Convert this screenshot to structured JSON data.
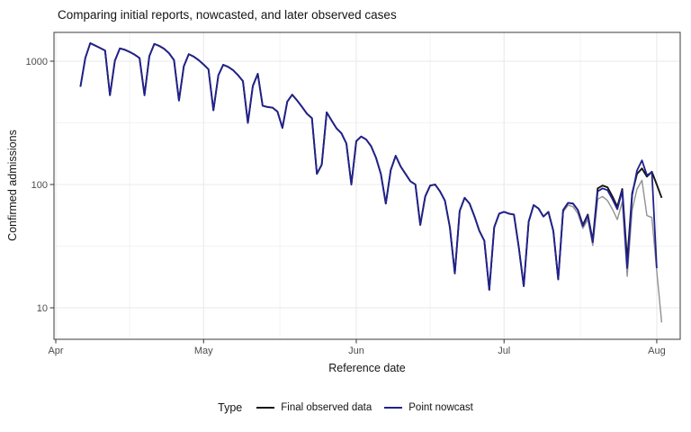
{
  "title": "Comparing initial reports, nowcasted, and later observed cases",
  "x_axis": {
    "label": "Reference date"
  },
  "y_axis": {
    "label": "Confirmed admissions"
  },
  "legend": {
    "title": "Type",
    "items": [
      {
        "label": "Final observed data",
        "color": "#141414"
      },
      {
        "label": "Point nowcast",
        "color": "#212191"
      }
    ]
  },
  "colors": {
    "background": "#ffffff",
    "panel_border": "#4d4d4d",
    "grid_major": "#e8e8e8",
    "grid_minor": "#f3f3f3",
    "tick_mark": "#333333",
    "tick_label": "#4d4d4d",
    "final_observed": "#141414",
    "point_nowcast": "#212191",
    "initial_reports": "#919191"
  },
  "chart_data": {
    "type": "line",
    "title": "Comparing initial reports, nowcasted, and later observed cases",
    "xlabel": "Reference date",
    "ylabel": "Confirmed admissions",
    "y_scale": "log10",
    "ylim": [
      5.6,
      1700
    ],
    "grid": true,
    "legend_position": "bottom",
    "x_ticks": [
      {
        "label": "Apr",
        "day": 0
      },
      {
        "label": "May",
        "day": 30
      },
      {
        "label": "Jun",
        "day": 61
      },
      {
        "label": "Jul",
        "day": 91
      },
      {
        "label": "Aug",
        "day": 122
      }
    ],
    "y_ticks": [
      {
        "label": "1000",
        "value": 1000
      },
      {
        "label": "100",
        "value": 100
      },
      {
        "label": "10",
        "value": 10
      }
    ],
    "minor_x_days": [
      15,
      45.5,
      76,
      106.5
    ],
    "minor_y_values": [
      316.23,
      31.62
    ],
    "dates": [
      "04-06",
      "04-07",
      "04-08",
      "04-09",
      "04-10",
      "04-11",
      "04-12",
      "04-13",
      "04-14",
      "04-15",
      "04-16",
      "04-17",
      "04-18",
      "04-19",
      "04-20",
      "04-21",
      "04-22",
      "04-23",
      "04-24",
      "04-25",
      "04-26",
      "04-27",
      "04-28",
      "04-29",
      "04-30",
      "05-01",
      "05-02",
      "05-03",
      "05-04",
      "05-05",
      "05-06",
      "05-07",
      "05-08",
      "05-09",
      "05-10",
      "05-11",
      "05-12",
      "05-13",
      "05-14",
      "05-15",
      "05-16",
      "05-17",
      "05-18",
      "05-19",
      "05-20",
      "05-21",
      "05-22",
      "05-23",
      "05-24",
      "05-25",
      "05-26",
      "05-27",
      "05-28",
      "05-29",
      "05-30",
      "05-31",
      "06-01",
      "06-02",
      "06-03",
      "06-04",
      "06-05",
      "06-06",
      "06-07",
      "06-08",
      "06-09",
      "06-10",
      "06-11",
      "06-12",
      "06-13",
      "06-14",
      "06-15",
      "06-16",
      "06-17",
      "06-18",
      "06-19",
      "06-20",
      "06-21",
      "06-22",
      "06-23",
      "06-24",
      "06-25",
      "06-26",
      "06-27",
      "06-28",
      "06-29",
      "06-30",
      "07-01",
      "07-02",
      "07-03",
      "07-04",
      "07-05",
      "07-06",
      "07-07",
      "07-08",
      "07-09",
      "07-10",
      "07-11",
      "07-12",
      "07-13",
      "07-14",
      "07-15",
      "07-16",
      "07-17",
      "07-18",
      "07-19",
      "07-20",
      "07-21",
      "07-22",
      "07-23",
      "07-24",
      "07-25",
      "07-26",
      "07-27",
      "07-28",
      "07-29",
      "07-30",
      "07-31",
      "08-01",
      "08-02"
    ],
    "series": [
      {
        "name": "Initial reports",
        "in_legend": false,
        "color": "#919191",
        "width": 1.4,
        "values": [
          620,
          1060,
          1400,
          1340,
          1280,
          1220,
          530,
          1010,
          1270,
          1240,
          1190,
          1130,
          1060,
          530,
          1100,
          1380,
          1330,
          1260,
          1160,
          1020,
          480,
          910,
          1140,
          1090,
          1020,
          940,
          860,
          400,
          770,
          935,
          900,
          845,
          770,
          690,
          316,
          630,
          790,
          435,
          425,
          420,
          390,
          288,
          470,
          535,
          480,
          425,
          375,
          345,
          122,
          145,
          385,
          330,
          285,
          260,
          215,
          100,
          225,
          245,
          232,
          205,
          165,
          122,
          70,
          131,
          171,
          140,
          122,
          106,
          100,
          47,
          80,
          98,
          100,
          88,
          74,
          45,
          19,
          61,
          78,
          70,
          55,
          42,
          35,
          14,
          45,
          58,
          60,
          58,
          57,
          31,
          15,
          50,
          68,
          64,
          55,
          60,
          42,
          17,
          60,
          68,
          66,
          58,
          44,
          52,
          32,
          76,
          80,
          74,
          63,
          52,
          72,
          18,
          62,
          92,
          108,
          56,
          54,
          20,
          7.6
        ]
      },
      {
        "name": "Final observed data",
        "in_legend": true,
        "color": "#141414",
        "width": 1.9,
        "values": [
          620,
          1060,
          1400,
          1340,
          1280,
          1220,
          530,
          1010,
          1270,
          1240,
          1190,
          1130,
          1060,
          530,
          1100,
          1380,
          1330,
          1260,
          1160,
          1020,
          480,
          910,
          1140,
          1090,
          1020,
          940,
          860,
          400,
          770,
          935,
          900,
          845,
          770,
          690,
          316,
          630,
          790,
          435,
          425,
          420,
          390,
          288,
          470,
          535,
          480,
          425,
          375,
          345,
          122,
          145,
          385,
          330,
          285,
          260,
          215,
          100,
          225,
          245,
          232,
          205,
          165,
          122,
          70,
          131,
          171,
          140,
          122,
          106,
          100,
          47,
          80,
          98,
          100,
          88,
          74,
          45,
          19,
          61,
          78,
          70,
          55,
          42,
          35,
          14,
          45,
          58,
          60,
          58,
          57,
          31,
          15,
          50,
          68,
          64,
          55,
          60,
          42,
          17,
          62,
          71,
          70,
          62,
          47,
          57,
          35,
          93,
          98,
          95,
          80,
          66,
          92,
          24,
          85,
          122,
          135,
          116,
          127,
          100,
          78
        ]
      },
      {
        "name": "Point nowcast",
        "in_legend": true,
        "color": "#212191",
        "width": 1.8,
        "values": [
          620,
          1060,
          1400,
          1340,
          1280,
          1220,
          530,
          1010,
          1270,
          1240,
          1190,
          1130,
          1060,
          530,
          1100,
          1380,
          1330,
          1260,
          1160,
          1020,
          480,
          910,
          1140,
          1090,
          1020,
          940,
          860,
          400,
          770,
          935,
          900,
          845,
          770,
          690,
          316,
          630,
          790,
          435,
          425,
          420,
          390,
          288,
          470,
          535,
          480,
          425,
          375,
          345,
          122,
          145,
          385,
          330,
          285,
          260,
          215,
          100,
          225,
          245,
          232,
          205,
          165,
          122,
          70,
          131,
          171,
          140,
          122,
          106,
          100,
          47,
          80,
          98,
          100,
          88,
          74,
          45,
          19,
          61,
          78,
          70,
          55,
          42,
          35,
          14,
          45,
          58,
          60,
          58,
          57,
          31,
          15,
          50,
          68,
          64,
          55,
          60,
          42,
          17,
          62,
          71,
          70,
          62,
          46,
          56,
          34,
          88,
          93,
          90,
          76,
          63,
          89,
          21,
          82,
          130,
          157,
          119,
          126,
          21,
          null
        ]
      }
    ]
  }
}
